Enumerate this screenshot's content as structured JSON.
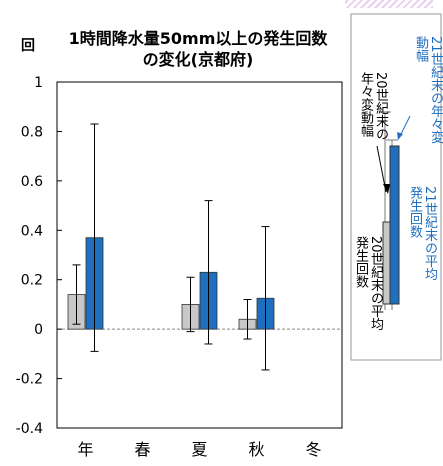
{
  "chart_data": {
    "type": "bar",
    "title": "1時間降水量50mm以上の発生回数\nの変化(京都府)",
    "ylabel": "回",
    "ylim": [
      -0.4,
      1.0
    ],
    "yticks": [
      "1",
      "0.8",
      "0.6",
      "0.4",
      "0.2",
      "0",
      "-0.2",
      "-0.4"
    ],
    "categories": [
      "年",
      "春",
      "夏",
      "秋",
      "冬"
    ],
    "series": [
      {
        "name": "20世紀末の平均発生回数",
        "color": "#c8c8c8",
        "values": [
          0.14,
          null,
          0.1,
          0.04,
          null
        ],
        "err_low": [
          0.02,
          null,
          -0.01,
          -0.04,
          null
        ],
        "err_high": [
          0.26,
          null,
          0.21,
          0.12,
          null
        ]
      },
      {
        "name": "21世紀末の平均発生回数",
        "color": "#1f6fbf",
        "values": [
          0.37,
          null,
          0.23,
          0.125,
          null
        ],
        "err_low": [
          -0.09,
          null,
          -0.06,
          -0.165,
          null
        ],
        "err_high": [
          0.83,
          null,
          0.52,
          0.415,
          null
        ]
      }
    ],
    "legend": {
      "label_21_range": "21世紀末の年々変動幅",
      "label_20_range": "20世紀末の年々変動幅",
      "label_21_mean": "21世紀末の平均発生回数",
      "label_20_mean": "20世紀末の平均発生回数",
      "placement": "right"
    }
  }
}
